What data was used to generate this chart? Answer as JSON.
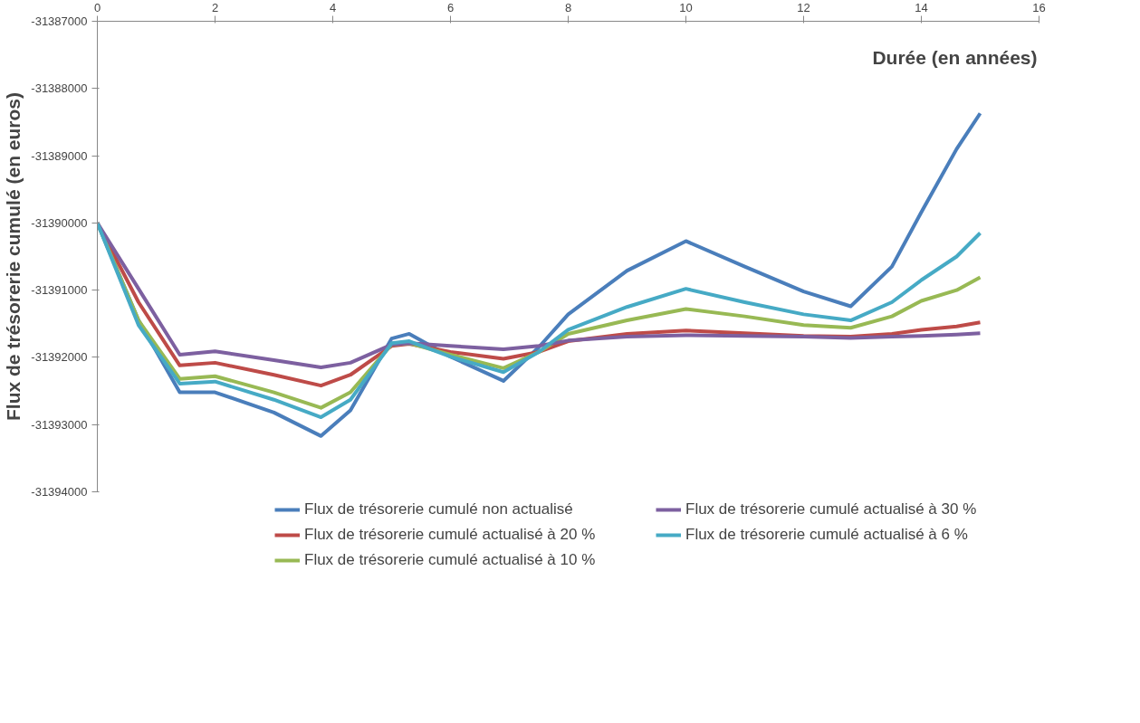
{
  "chart_data": {
    "type": "line",
    "xlabel": "Durée (en années)",
    "ylabel": "Flux de trésorerie cumulé (en euros)",
    "x": [
      0,
      0.7,
      1.4,
      2,
      3,
      3.8,
      4.3,
      5,
      5.3,
      6,
      6.9,
      7.5,
      8,
      9,
      10,
      11,
      12,
      12.8,
      13.5,
      14,
      14.6,
      15
    ],
    "series": [
      {
        "name": "Flux de trésorerie cumulé non actualisé",
        "color": "#4a7ebb",
        "values": [
          -31390000,
          -31391450,
          -31392520,
          -31392520,
          -31392820,
          -31393170,
          -31392790,
          -31391720,
          -31391650,
          -31391990,
          -31392350,
          -31391850,
          -31391360,
          -31390710,
          -31390270,
          -31390650,
          -31391020,
          -31391240,
          -31390650,
          -31389840,
          -31388900,
          -31388370
        ]
      },
      {
        "name": "Flux de trésorerie cumulé actualisé à 20 %",
        "color": "#be4b48",
        "values": [
          -31390000,
          -31391180,
          -31392120,
          -31392080,
          -31392260,
          -31392420,
          -31392260,
          -31391830,
          -31391800,
          -31391920,
          -31392020,
          -31391920,
          -31391760,
          -31391650,
          -31391600,
          -31391640,
          -31391680,
          -31391690,
          -31391650,
          -31391590,
          -31391540,
          -31391480
        ]
      },
      {
        "name": "Flux de trésorerie cumulé actualisé à 10 %",
        "color": "#98b954",
        "values": [
          -31390000,
          -31391450,
          -31392320,
          -31392280,
          -31392520,
          -31392750,
          -31392520,
          -31391810,
          -31391790,
          -31391960,
          -31392160,
          -31391920,
          -31391650,
          -31391450,
          -31391280,
          -31391390,
          -31391520,
          -31391560,
          -31391390,
          -31391160,
          -31391000,
          -31390810
        ]
      },
      {
        "name": "Flux de trésorerie cumulé actualisé à 30 %",
        "color": "#7d60a0",
        "values": [
          -31390000,
          -31390980,
          -31391960,
          -31391910,
          -31392040,
          -31392150,
          -31392080,
          -31391810,
          -31391790,
          -31391830,
          -31391880,
          -31391830,
          -31391750,
          -31391690,
          -31391670,
          -31391680,
          -31391690,
          -31391710,
          -31391690,
          -31391680,
          -31391660,
          -31391640
        ]
      },
      {
        "name": "Flux de trésorerie cumulé actualisé à 6 %",
        "color": "#46aac5",
        "values": [
          -31390000,
          -31391520,
          -31392390,
          -31392360,
          -31392630,
          -31392890,
          -31392630,
          -31391790,
          -31391760,
          -31391990,
          -31392220,
          -31391920,
          -31391590,
          -31391250,
          -31390980,
          -31391180,
          -31391360,
          -31391450,
          -31391180,
          -31390850,
          -31390500,
          -31390150
        ]
      }
    ],
    "xlim": [
      0,
      16
    ],
    "xticks": [
      0,
      2,
      4,
      6,
      8,
      10,
      12,
      14,
      16
    ],
    "ylim": [
      -31394000,
      -31387000
    ],
    "yticks": [
      -31394000,
      -31393000,
      -31392000,
      -31391000,
      -31390000,
      -31389000,
      -31388000,
      -31387000
    ],
    "grid": false,
    "legend": "bottom",
    "marker": "none",
    "line_style": "solid"
  }
}
